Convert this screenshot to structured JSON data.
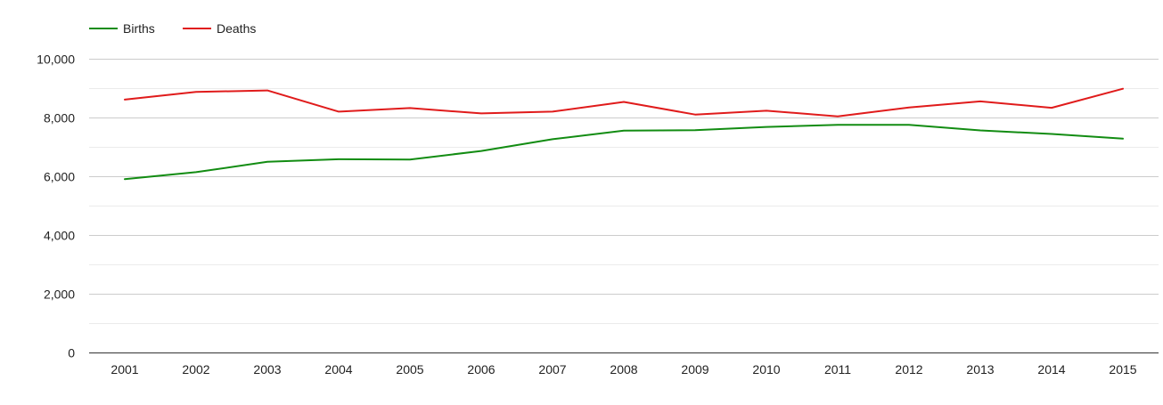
{
  "chart_data": {
    "type": "line",
    "title": "",
    "xlabel": "",
    "ylabel": "",
    "categories": [
      "2001",
      "2002",
      "2003",
      "2004",
      "2005",
      "2006",
      "2007",
      "2008",
      "2009",
      "2010",
      "2011",
      "2012",
      "2013",
      "2014",
      "2015"
    ],
    "series": [
      {
        "name": "Births",
        "color": "#128c12",
        "values": [
          5900,
          6140,
          6490,
          6580,
          6570,
          6860,
          7260,
          7550,
          7570,
          7680,
          7750,
          7750,
          7560,
          7440,
          7280
        ]
      },
      {
        "name": "Deaths",
        "color": "#e01b1b",
        "values": [
          8610,
          8870,
          8920,
          8200,
          8320,
          8140,
          8200,
          8530,
          8100,
          8230,
          8040,
          8340,
          8550,
          8330,
          8980
        ]
      }
    ],
    "ylim": [
      0,
      10000
    ],
    "yticks": [
      0,
      2000,
      4000,
      6000,
      8000,
      10000
    ],
    "ytick_labels": [
      "0",
      "2,000",
      "4,000",
      "6,000",
      "8,000",
      "10,000"
    ],
    "minor_gridlines": true,
    "legend_position": "top-left"
  }
}
